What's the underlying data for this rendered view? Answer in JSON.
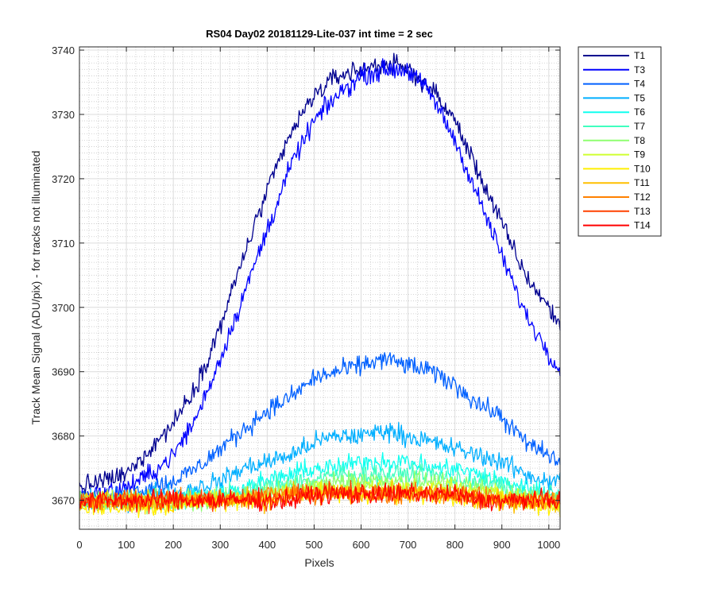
{
  "chart_data": {
    "type": "line",
    "title": "RS04 Day02 20181129-Lite-037 int time = 2 sec",
    "xlabel": "Pixels",
    "ylabel": "Track Mean Signal (ADU/pix) - for tracks not illuminated",
    "xlim": [
      0,
      1024
    ],
    "ylim": [
      3665.5,
      3740.5
    ],
    "xticks": [
      0,
      100,
      200,
      300,
      400,
      500,
      600,
      700,
      800,
      900,
      1000
    ],
    "yticks": [
      3670,
      3680,
      3690,
      3700,
      3710,
      3720,
      3730,
      3740
    ],
    "grid": "major and minor",
    "legend_position": "outside-right",
    "x_samples": [
      0,
      50,
      100,
      150,
      200,
      250,
      300,
      350,
      400,
      450,
      500,
      550,
      600,
      650,
      700,
      750,
      800,
      850,
      900,
      950,
      1000,
      1024
    ],
    "noise_amplitude_adu": 1.5,
    "series": [
      {
        "name": "T1",
        "color": "#00008F",
        "values": [
          3672,
          3673,
          3674,
          3678,
          3682,
          3688,
          3697,
          3708,
          3718,
          3727,
          3733,
          3736,
          3737,
          3738,
          3737,
          3734,
          3729,
          3721,
          3713,
          3705,
          3700,
          3697
        ]
      },
      {
        "name": "T3",
        "color": "#0000FF",
        "values": [
          3671,
          3671,
          3672,
          3674,
          3677,
          3683,
          3692,
          3702,
          3712,
          3722,
          3729,
          3733,
          3736,
          3737,
          3737,
          3733,
          3726,
          3717,
          3708,
          3699,
          3693,
          3690
        ]
      },
      {
        "name": "T4",
        "color": "#0060FF",
        "values": [
          3670,
          3670,
          3671,
          3672,
          3673,
          3675,
          3678,
          3681,
          3684,
          3686,
          3689,
          3690,
          3691,
          3692,
          3691,
          3690,
          3688,
          3685,
          3683,
          3679,
          3677,
          3676
        ]
      },
      {
        "name": "T5",
        "color": "#00AFFF",
        "values": [
          3670,
          3670,
          3670,
          3671,
          3671,
          3672,
          3673,
          3675,
          3676,
          3677,
          3679,
          3680,
          3680,
          3681,
          3680,
          3679,
          3678,
          3677,
          3676,
          3674,
          3673,
          3673
        ]
      },
      {
        "name": "T6",
        "color": "#10FFEF",
        "values": [
          3670,
          3670,
          3670,
          3670,
          3670,
          3671,
          3671,
          3672,
          3673,
          3674,
          3675,
          3675,
          3676,
          3676,
          3676,
          3675,
          3675,
          3674,
          3673,
          3672,
          3671,
          3671
        ]
      },
      {
        "name": "T7",
        "color": "#40FFBF",
        "values": [
          3670,
          3670,
          3670,
          3670,
          3670,
          3670,
          3671,
          3671,
          3672,
          3673,
          3673,
          3674,
          3674,
          3674,
          3674,
          3674,
          3673,
          3673,
          3672,
          3671,
          3671,
          3671
        ]
      },
      {
        "name": "T8",
        "color": "#8FFF70",
        "values": [
          3670,
          3670,
          3670,
          3670,
          3670,
          3670,
          3670,
          3671,
          3671,
          3672,
          3672,
          3673,
          3673,
          3673,
          3673,
          3673,
          3672,
          3672,
          3671,
          3671,
          3670,
          3670
        ]
      },
      {
        "name": "T9",
        "color": "#CFFF30",
        "values": [
          3670,
          3670,
          3670,
          3670,
          3670,
          3670,
          3670,
          3670,
          3671,
          3671,
          3672,
          3672,
          3672,
          3672,
          3672,
          3672,
          3672,
          3671,
          3671,
          3670,
          3670,
          3670
        ]
      },
      {
        "name": "T10",
        "color": "#FFEF00",
        "values": [
          3669,
          3669,
          3669,
          3669,
          3669,
          3670,
          3670,
          3670,
          3670,
          3671,
          3671,
          3671,
          3671,
          3671,
          3671,
          3671,
          3671,
          3670,
          3670,
          3670,
          3669,
          3669
        ]
      },
      {
        "name": "T11",
        "color": "#FFBF00",
        "values": [
          3670,
          3670,
          3670,
          3670,
          3670,
          3670,
          3670,
          3670,
          3670,
          3671,
          3671,
          3671,
          3671,
          3671,
          3671,
          3671,
          3671,
          3670,
          3670,
          3670,
          3670,
          3670
        ]
      },
      {
        "name": "T12",
        "color": "#FF8000",
        "values": [
          3670,
          3670,
          3670,
          3670,
          3670,
          3670,
          3670,
          3670,
          3671,
          3671,
          3671,
          3671,
          3671,
          3671,
          3671,
          3671,
          3671,
          3671,
          3670,
          3670,
          3670,
          3670
        ]
      },
      {
        "name": "T13",
        "color": "#FF4000",
        "values": [
          3670,
          3670,
          3670,
          3670,
          3670,
          3670,
          3670,
          3670,
          3670,
          3671,
          3671,
          3671,
          3671,
          3671,
          3671,
          3671,
          3671,
          3670,
          3670,
          3670,
          3670,
          3670
        ]
      },
      {
        "name": "T14",
        "color": "#FF0000",
        "values": [
          3670,
          3670,
          3670,
          3670,
          3670,
          3670,
          3670,
          3670,
          3670,
          3670,
          3671,
          3671,
          3671,
          3671,
          3671,
          3671,
          3671,
          3670,
          3670,
          3670,
          3670,
          3670
        ]
      }
    ]
  }
}
